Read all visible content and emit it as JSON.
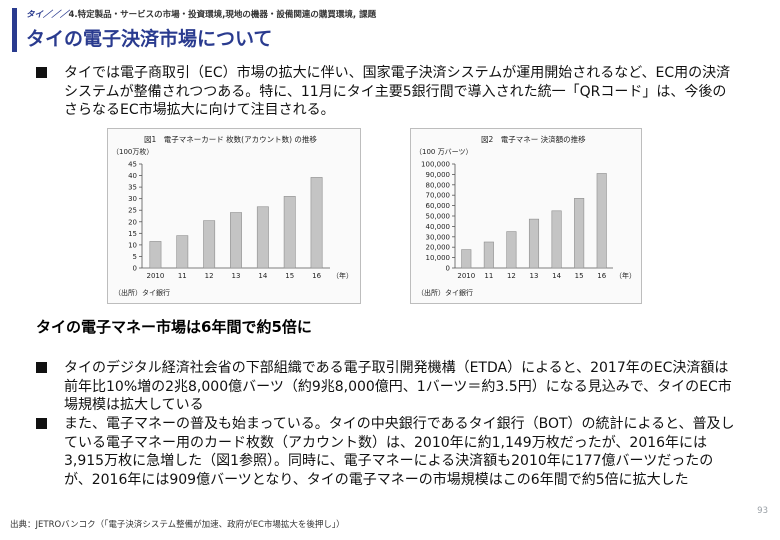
{
  "header": {
    "breadcrumb_lead": "タイ／／／",
    "breadcrumb_rest": "4.特定製品・サービスの市場・投資環境,現地の機器・設備関連の購買環境, 課題",
    "title": "タイの電子決済市場について"
  },
  "intro": {
    "text": "タイでは電子商取引（EC）市場の拡大に伴い、国家電子決済システムが運用開始されるなど、EC用の決済システムが整備されつつある。特に、11月にタイ主要5銀行間で導入された統一「QRコード」は、今後のさらなるEC市場拡大に向けて注目される。"
  },
  "section": {
    "title": "タイの電子マネー市場は6年間で約5倍に",
    "bullets": [
      "タイのデジタル経済社会省の下部組織である電子取引開発機構（ETDA）によると、2017年のEC決済額は前年比10%増の2兆8,000億バーツ（約9兆8,000億円、1バーツ＝約3.5円）になる見込みで、タイのEC市場規模は拡大している",
      "また、電子マネーの普及も始まっている。タイの中央銀行であるタイ銀行（BOT）の統計によると、普及している電子マネー用のカード枚数（アカウント数）は、2010年に約1,149万枚だったが、2016年には3,915万枚に急増した（図1参照）。同時に、電子マネーによる決済額も2010年に177億バーツだったのが、2016年には909億バーツとなり、タイの電子マネーの市場規模はこの6年間で約5倍に拡大した"
    ]
  },
  "chart_data": [
    {
      "type": "bar",
      "title": "図1　電子マネーカード 枚数(アカウント数) の推移",
      "unit_label": "（100万枚）",
      "year_suffix": "（年）",
      "source": "（出所）タイ銀行",
      "categories": [
        "2010",
        "11",
        "12",
        "13",
        "14",
        "15",
        "16"
      ],
      "values": [
        11.5,
        14,
        20.5,
        24,
        26.5,
        31,
        39.2
      ],
      "ylim": [
        0,
        45
      ],
      "yticks": [
        0,
        5,
        10,
        15,
        20,
        25,
        30,
        35,
        40,
        45
      ],
      "bar_color": "#c4c4c4"
    },
    {
      "type": "bar",
      "title": "図2　電子マネー 決済額の推移",
      "unit_label": "（100 万バーツ）",
      "year_suffix": "（年）",
      "source": "（出所）タイ銀行",
      "categories": [
        "2010",
        "11",
        "12",
        "13",
        "14",
        "15",
        "16"
      ],
      "values": [
        17700,
        25000,
        35000,
        47000,
        55000,
        67000,
        90900
      ],
      "ylim": [
        0,
        100000
      ],
      "yticks": [
        0,
        10000,
        20000,
        30000,
        40000,
        50000,
        60000,
        70000,
        80000,
        90000,
        100000
      ],
      "ytick_labels": [
        "0",
        "10,000",
        "20,000",
        "30,000",
        "40,000",
        "50,000",
        "60,000",
        "70,000",
        "80,000",
        "90,000",
        "100,000"
      ],
      "bar_color": "#c4c4c4"
    }
  ],
  "footer": {
    "source": "出典：JETROバンコク（「電子決済システム整備が加速、政府がEC市場拡大を後押し」）",
    "page_number": "93"
  }
}
